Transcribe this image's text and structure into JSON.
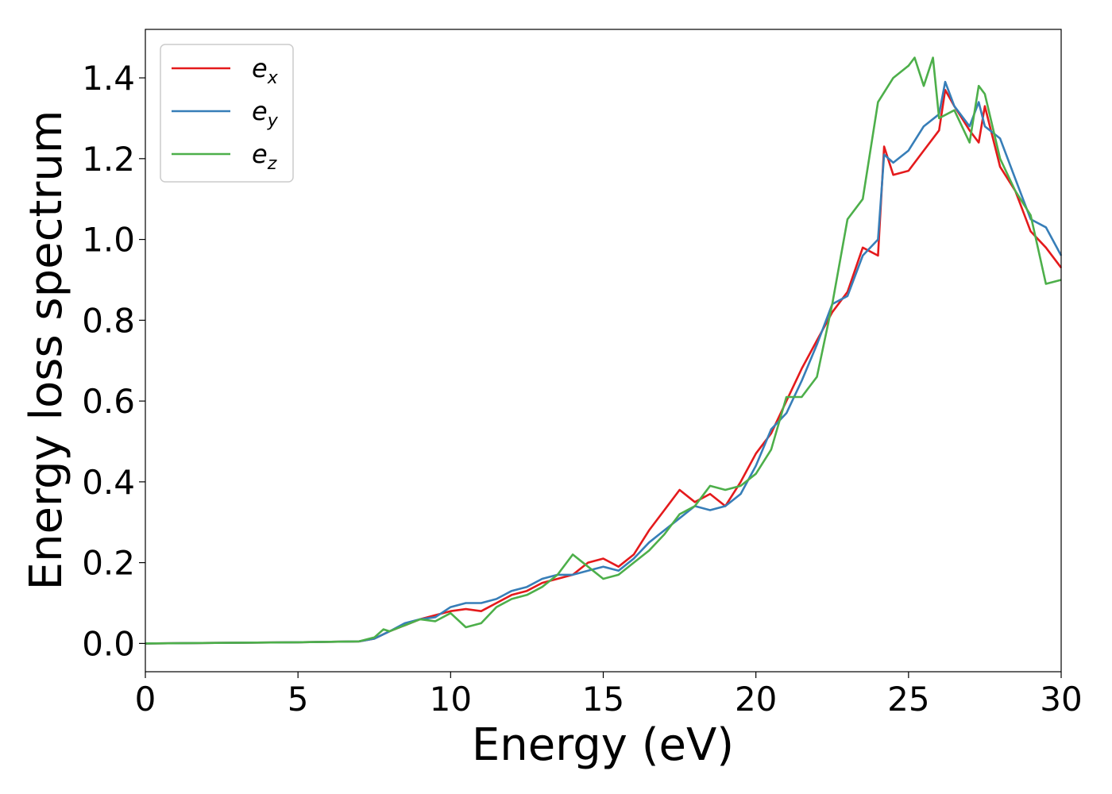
{
  "chart_data": {
    "type": "line",
    "title": "",
    "xlabel": "Energy (eV)",
    "ylabel": "Energy loss spectrum",
    "xlim": [
      0,
      30
    ],
    "ylim": [
      -0.07,
      1.52
    ],
    "xticks": [
      0,
      5,
      10,
      15,
      20,
      25,
      30
    ],
    "xtick_labels": [
      "0",
      "5",
      "10",
      "15",
      "20",
      "25",
      "30"
    ],
    "yticks": [
      0.0,
      0.2,
      0.4,
      0.6,
      0.8,
      1.0,
      1.2,
      1.4
    ],
    "ytick_labels": [
      "0.0",
      "0.2",
      "0.4",
      "0.6",
      "0.8",
      "1.0",
      "1.2",
      "1.4"
    ],
    "grid": false,
    "legend_position": "top-left",
    "series": [
      {
        "name": "e",
        "sub": "x",
        "color": "#e41a1c",
        "x": [
          0,
          5,
          7,
          7.5,
          8,
          8.5,
          9,
          9.5,
          10,
          10.5,
          11,
          11.5,
          12,
          12.5,
          13,
          13.5,
          14,
          14.5,
          15,
          15.5,
          16,
          16.5,
          17,
          17.5,
          18,
          18.5,
          19,
          19.5,
          20,
          20.5,
          21,
          21.5,
          22,
          22.5,
          23,
          23.5,
          24,
          24.2,
          24.5,
          25,
          25.5,
          26,
          26.2,
          26.5,
          27,
          27.3,
          27.5,
          28,
          28.5,
          29,
          29.5,
          30
        ],
        "y": [
          0.0,
          0.003,
          0.005,
          0.012,
          0.03,
          0.045,
          0.06,
          0.07,
          0.08,
          0.085,
          0.08,
          0.1,
          0.12,
          0.13,
          0.15,
          0.16,
          0.17,
          0.2,
          0.21,
          0.19,
          0.22,
          0.28,
          0.33,
          0.38,
          0.35,
          0.37,
          0.34,
          0.4,
          0.47,
          0.52,
          0.6,
          0.68,
          0.75,
          0.82,
          0.87,
          0.98,
          0.96,
          1.23,
          1.16,
          1.17,
          1.22,
          1.27,
          1.37,
          1.33,
          1.27,
          1.24,
          1.33,
          1.18,
          1.12,
          1.02,
          0.98,
          0.93
        ]
      },
      {
        "name": "e",
        "sub": "y",
        "color": "#377eb8",
        "x": [
          0,
          5,
          7,
          7.5,
          8,
          8.5,
          9,
          9.5,
          10,
          10.5,
          11,
          11.5,
          12,
          12.5,
          13,
          13.5,
          14,
          14.5,
          15,
          15.5,
          16,
          16.5,
          17,
          17.5,
          18,
          18.5,
          19,
          19.5,
          20,
          20.5,
          21,
          21.5,
          22,
          22.5,
          23,
          23.5,
          24,
          24.2,
          24.5,
          25,
          25.5,
          26,
          26.2,
          26.5,
          27,
          27.3,
          27.5,
          28,
          28.5,
          29,
          29.5,
          30
        ],
        "y": [
          0.0,
          0.003,
          0.005,
          0.012,
          0.03,
          0.05,
          0.06,
          0.065,
          0.09,
          0.1,
          0.1,
          0.11,
          0.13,
          0.14,
          0.16,
          0.17,
          0.17,
          0.18,
          0.19,
          0.18,
          0.21,
          0.25,
          0.28,
          0.31,
          0.34,
          0.33,
          0.34,
          0.37,
          0.44,
          0.53,
          0.57,
          0.65,
          0.74,
          0.84,
          0.86,
          0.96,
          1.0,
          1.21,
          1.19,
          1.22,
          1.28,
          1.31,
          1.39,
          1.33,
          1.28,
          1.34,
          1.28,
          1.25,
          1.15,
          1.05,
          1.03,
          0.96
        ]
      },
      {
        "name": "e",
        "sub": "z",
        "color": "#4daf4a",
        "x": [
          0,
          5,
          7,
          7.5,
          7.8,
          8,
          8.5,
          9,
          9.5,
          10,
          10.5,
          11,
          11.5,
          12,
          12.5,
          13,
          13.5,
          14,
          14.5,
          15,
          15.5,
          16,
          16.5,
          17,
          17.5,
          18,
          18.5,
          19,
          19.5,
          20,
          20.5,
          21,
          21.5,
          22,
          22.5,
          23,
          23.5,
          24,
          24.5,
          25,
          25.2,
          25.5,
          25.8,
          26,
          26.5,
          27,
          27.3,
          27.5,
          28,
          28.5,
          29,
          29.5,
          30
        ],
        "y": [
          0.0,
          0.003,
          0.005,
          0.015,
          0.035,
          0.03,
          0.045,
          0.06,
          0.055,
          0.075,
          0.04,
          0.05,
          0.09,
          0.11,
          0.12,
          0.14,
          0.17,
          0.22,
          0.19,
          0.16,
          0.17,
          0.2,
          0.23,
          0.27,
          0.32,
          0.34,
          0.39,
          0.38,
          0.39,
          0.42,
          0.48,
          0.61,
          0.61,
          0.66,
          0.84,
          1.05,
          1.1,
          1.34,
          1.4,
          1.43,
          1.45,
          1.38,
          1.45,
          1.3,
          1.32,
          1.24,
          1.38,
          1.36,
          1.2,
          1.12,
          1.06,
          0.89,
          0.9
        ]
      }
    ]
  }
}
